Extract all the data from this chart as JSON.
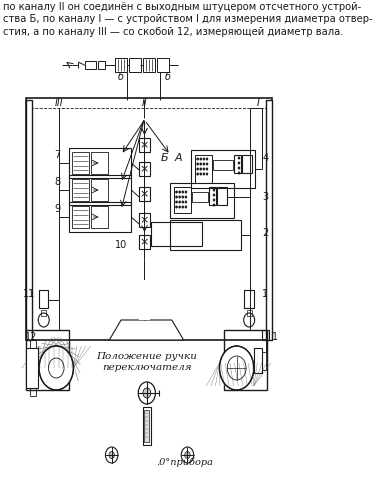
{
  "text_header": "по каналу II он соединён с выходным штуцером отсчетного устрой-\nства Б, по каналу I — с устройством I для измерения диаметра отвер-\nстия, а по каналу III — со скобой 12, измеряющей диаметр вала.",
  "label_6a": "б",
  "label_6b": "б",
  "label_III": "III",
  "label_II": "II",
  "label_I": "I",
  "label_B": "Б",
  "label_A": "А",
  "label_7": "7",
  "label_8": "8",
  "label_9": "9",
  "label_10": "10",
  "label_11": "11",
  "label_12": "12",
  "label_4": "4",
  "label_3": "3",
  "label_2": "2",
  "label_1": "1",
  "annotation_switch": "Положение ручки\nпереключателя",
  "annotation_zero": ".0°прибора",
  "bg_color": "#ffffff",
  "line_color": "#1a1a1a",
  "font_size_header": 7.2,
  "font_size_label": 7.0,
  "font_size_annot": 7.5
}
